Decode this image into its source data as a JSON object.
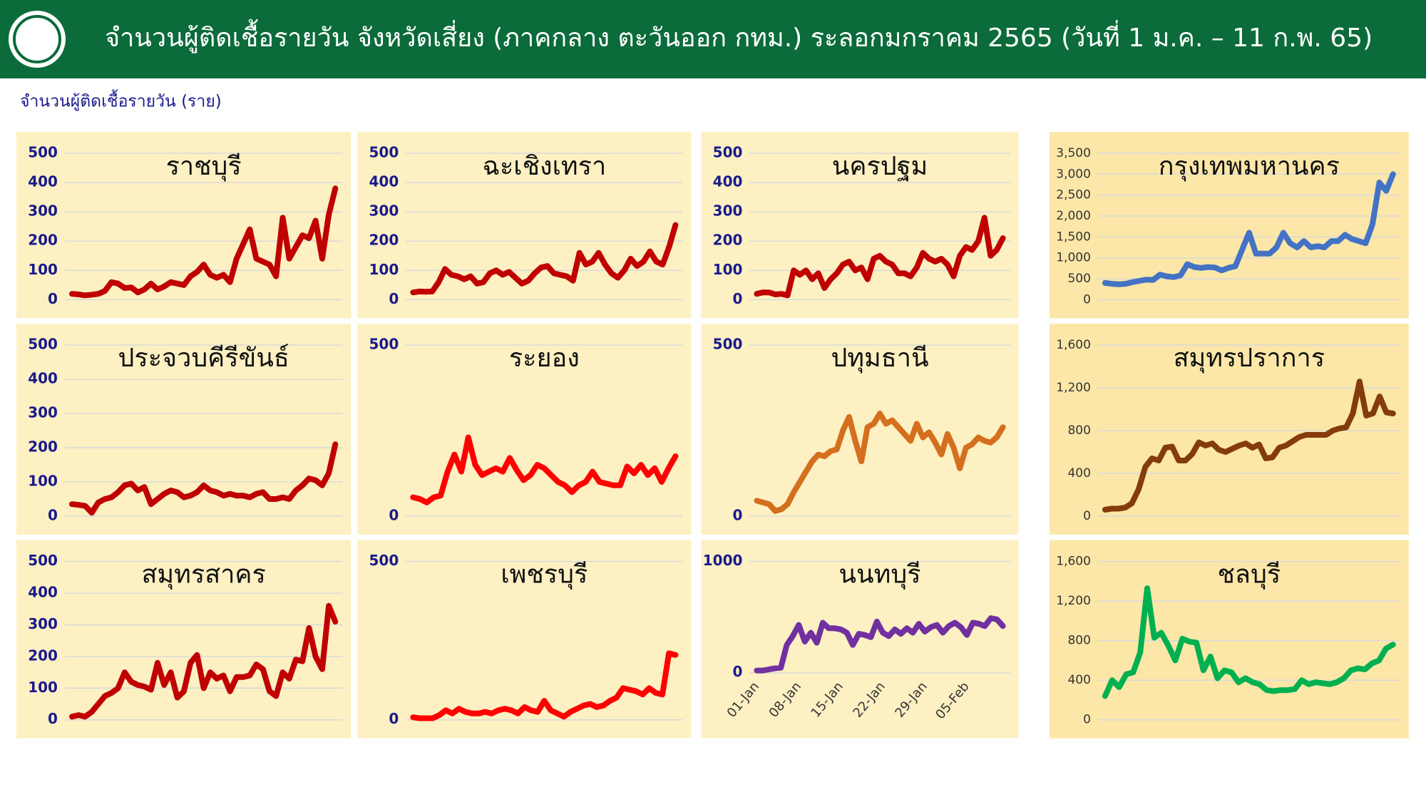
{
  "header": {
    "title": "จำนวนผู้ติดเชื้อรายวัน  จังหวัดเสี่ยง (ภาคกลาง ตะวันออก กทม.) ระลอกมกราคม 2565 (วันที่ 1 ม.ค. – 11 ก.พ. 65)"
  },
  "subtitle": "จำนวนผู้ติดเชื้อรายวัน (ราย)",
  "chart_data": [
    {
      "type": "line",
      "title": "ราชบุรี",
      "color": "#c00000",
      "background": "#fdf0c3",
      "tick_color": "#1a1a8c",
      "ylim": [
        0,
        500
      ],
      "yticks": [
        0,
        100,
        200,
        300,
        400,
        500
      ],
      "grid": true,
      "values": [
        20,
        18,
        15,
        17,
        20,
        30,
        60,
        55,
        40,
        42,
        25,
        35,
        55,
        35,
        45,
        60,
        55,
        50,
        80,
        95,
        120,
        85,
        75,
        85,
        60,
        140,
        190,
        240,
        140,
        130,
        120,
        80,
        280,
        140,
        180,
        220,
        210,
        270,
        140,
        290,
        380
      ]
    },
    {
      "type": "line",
      "title": "ฉะเชิงเทรา",
      "color": "#c00000",
      "background": "#fdf0c3",
      "tick_color": "#1a1a8c",
      "ylim": [
        0,
        500
      ],
      "yticks": [
        0,
        100,
        200,
        300,
        400,
        500
      ],
      "grid": true,
      "values": [
        25,
        28,
        27,
        28,
        60,
        105,
        85,
        80,
        70,
        80,
        55,
        60,
        90,
        100,
        85,
        95,
        75,
        55,
        65,
        90,
        110,
        115,
        90,
        85,
        80,
        65,
        160,
        120,
        130,
        160,
        120,
        90,
        75,
        100,
        140,
        115,
        130,
        165,
        130,
        120,
        180,
        255
      ]
    },
    {
      "type": "line",
      "title": "นครปฐม",
      "color": "#c00000",
      "background": "#fdf0c3",
      "tick_color": "#1a1a8c",
      "ylim": [
        0,
        500
      ],
      "yticks": [
        0,
        100,
        200,
        300,
        400,
        500
      ],
      "grid": true,
      "values": [
        20,
        25,
        25,
        18,
        20,
        15,
        100,
        85,
        100,
        70,
        90,
        40,
        70,
        90,
        120,
        130,
        100,
        110,
        70,
        140,
        150,
        130,
        120,
        90,
        90,
        80,
        110,
        160,
        140,
        130,
        140,
        120,
        80,
        150,
        180,
        170,
        200,
        280,
        150,
        170,
        210
      ]
    },
    {
      "type": "line",
      "title": "กรุงเทพมหานคร",
      "color": "#4472c4",
      "background": "#fce7a8",
      "tick_color": "#333333",
      "ylim": [
        0,
        3500
      ],
      "yticks": [
        0,
        {
          "value": 500,
          "label": "500"
        },
        {
          "value": 1000,
          "label": "1,000"
        },
        {
          "value": 1500,
          "label": "1,500"
        },
        {
          "value": 2000,
          "label": "2,000"
        },
        {
          "value": 2500,
          "label": "2,500"
        },
        {
          "value": 3000,
          "label": "3,000"
        },
        {
          "value": 3500,
          "label": "3,500"
        }
      ],
      "grid": true,
      "values": [
        400,
        380,
        370,
        380,
        420,
        450,
        480,
        470,
        600,
        560,
        540,
        580,
        850,
        780,
        760,
        780,
        770,
        700,
        760,
        800,
        1200,
        1600,
        1100,
        1100,
        1100,
        1250,
        1600,
        1350,
        1250,
        1400,
        1250,
        1280,
        1250,
        1400,
        1400,
        1550,
        1450,
        1400,
        1350,
        1800,
        2800,
        2600,
        3000
      ]
    },
    {
      "type": "line",
      "title": "ประจวบคีรีขันธ์",
      "color": "#c00000",
      "background": "#fdf0c3",
      "tick_color": "#1a1a8c",
      "ylim": [
        0,
        500
      ],
      "yticks": [
        0,
        100,
        200,
        300,
        400,
        500
      ],
      "grid": true,
      "values": [
        35,
        33,
        30,
        10,
        40,
        50,
        55,
        70,
        90,
        95,
        75,
        85,
        35,
        50,
        65,
        75,
        70,
        55,
        60,
        70,
        90,
        75,
        70,
        60,
        65,
        60,
        60,
        55,
        65,
        70,
        50,
        50,
        55,
        50,
        75,
        90,
        110,
        105,
        90,
        125,
        210
      ]
    },
    {
      "type": "line",
      "title": "ระยอง",
      "color": "#ff0000",
      "background": "#fdf0c3",
      "tick_color": "#1a1a8c",
      "ylim": [
        0,
        500
      ],
      "yticks": [
        0,
        500
      ],
      "grid": true,
      "values": [
        55,
        50,
        40,
        55,
        60,
        130,
        180,
        130,
        230,
        150,
        120,
        130,
        140,
        130,
        170,
        135,
        105,
        120,
        150,
        140,
        120,
        100,
        90,
        70,
        90,
        100,
        130,
        100,
        95,
        90,
        90,
        145,
        125,
        150,
        120,
        140,
        100,
        140,
        175
      ]
    },
    {
      "type": "line",
      "title": "ปทุมธานี",
      "color": "#d46f1e",
      "background": "#fdf0c3",
      "tick_color": "#1a1a8c",
      "ylim": [
        0,
        500
      ],
      "yticks": [
        0,
        500
      ],
      "grid": true,
      "values": [
        45,
        40,
        35,
        15,
        20,
        35,
        70,
        100,
        130,
        160,
        180,
        175,
        190,
        195,
        250,
        290,
        220,
        160,
        260,
        270,
        300,
        270,
        280,
        260,
        240,
        220,
        270,
        230,
        245,
        215,
        180,
        240,
        200,
        140,
        200,
        210,
        230,
        220,
        215,
        230,
        260
      ]
    },
    {
      "type": "line",
      "title": "สมุทรปราการ",
      "color": "#843c0c",
      "background": "#fce7a8",
      "tick_color": "#333333",
      "ylim": [
        0,
        1600
      ],
      "yticks": [
        0,
        400,
        800,
        {
          "value": 1200,
          "label": "1,200"
        },
        {
          "value": 1600,
          "label": "1,600"
        }
      ],
      "grid": true,
      "values": [
        60,
        70,
        70,
        80,
        120,
        250,
        460,
        540,
        520,
        640,
        650,
        520,
        520,
        580,
        690,
        660,
        680,
        620,
        600,
        630,
        660,
        680,
        640,
        670,
        540,
        550,
        640,
        660,
        700,
        740,
        760,
        760,
        760,
        760,
        800,
        820,
        830,
        960,
        1260,
        940,
        960,
        1120,
        970,
        960
      ]
    },
    {
      "type": "line",
      "title": "สมุทรสาคร",
      "color": "#c00000",
      "background": "#fdf0c3",
      "tick_color": "#1a1a8c",
      "ylim": [
        0,
        500
      ],
      "yticks": [
        0,
        100,
        200,
        300,
        400,
        500
      ],
      "grid": true,
      "values": [
        10,
        15,
        10,
        25,
        50,
        75,
        85,
        100,
        150,
        120,
        110,
        105,
        95,
        180,
        110,
        150,
        70,
        90,
        180,
        205,
        100,
        150,
        130,
        140,
        90,
        135,
        135,
        140,
        175,
        160,
        90,
        75,
        150,
        130,
        190,
        185,
        290,
        200,
        160,
        360,
        310
      ]
    },
    {
      "type": "line",
      "title": "เพชรบุรี",
      "color": "#ff0000",
      "background": "#fdf0c3",
      "tick_color": "#1a1a8c",
      "ylim": [
        0,
        500
      ],
      "yticks": [
        0,
        500
      ],
      "grid": true,
      "values": [
        8,
        5,
        5,
        5,
        15,
        30,
        20,
        35,
        25,
        20,
        20,
        25,
        20,
        30,
        35,
        30,
        20,
        40,
        30,
        25,
        60,
        30,
        20,
        10,
        25,
        35,
        45,
        50,
        40,
        45,
        60,
        70,
        100,
        95,
        90,
        80,
        100,
        85,
        80,
        210,
        205
      ]
    },
    {
      "type": "line",
      "title": "นนทบุรี",
      "color": "#7030a0",
      "background": "#fdf0c3",
      "tick_color": "#1a1a8c",
      "ylim": [
        0,
        1000
      ],
      "yticks": [
        0,
        1000
      ],
      "grid": true,
      "categories": [
        "01-Jan",
        null,
        null,
        null,
        null,
        null,
        null,
        "08-Jan",
        null,
        null,
        null,
        null,
        null,
        null,
        "15-Jan",
        null,
        null,
        null,
        null,
        null,
        null,
        "22-Jan",
        null,
        null,
        null,
        null,
        null,
        null,
        "29-Jan",
        null,
        null,
        null,
        null,
        null,
        null,
        "05-Feb",
        null,
        null,
        null,
        null,
        null,
        null
      ],
      "values": [
        20,
        20,
        30,
        40,
        45,
        250,
        330,
        430,
        280,
        360,
        270,
        450,
        400,
        400,
        390,
        360,
        250,
        350,
        340,
        320,
        460,
        360,
        330,
        390,
        350,
        400,
        360,
        440,
        370,
        410,
        430,
        360,
        420,
        450,
        410,
        340,
        450,
        440,
        420,
        490,
        480,
        420
      ]
    },
    {
      "type": "line",
      "title": "ชลบุรี",
      "color": "#00b050",
      "background": "#fce7a8",
      "tick_color": "#333333",
      "ylim": [
        0,
        1600
      ],
      "yticks": [
        0,
        400,
        800,
        {
          "value": 1200,
          "label": "1,200"
        },
        {
          "value": 1600,
          "label": "1,600"
        }
      ],
      "grid": true,
      "values": [
        240,
        400,
        330,
        460,
        480,
        680,
        1330,
        830,
        880,
        750,
        600,
        820,
        790,
        780,
        500,
        640,
        420,
        500,
        480,
        380,
        420,
        380,
        360,
        300,
        290,
        300,
        300,
        310,
        400,
        360,
        380,
        370,
        360,
        380,
        420,
        500,
        520,
        510,
        570,
        600,
        720,
        760
      ]
    }
  ]
}
